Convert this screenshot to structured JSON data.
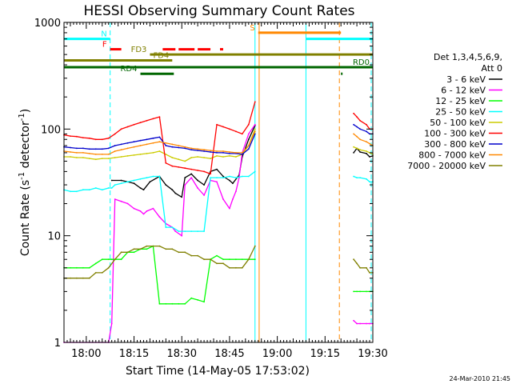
{
  "chart_data": {
    "type": "line",
    "title": "HESSI Observing Summary Count Rates",
    "xlabel": "Start Time (14-May-05 17:53:02)",
    "ylabel_pre": "Count Rate (s",
    "ylabel_sup1": "-1",
    "ylabel_mid": " detector",
    "ylabel_sup2": "-1",
    "ylabel_post": ")",
    "x_unit": "minutes after 17:53:02",
    "xlim": [
      0,
      97
    ],
    "ylim": [
      1,
      1000
    ],
    "y_scale": "log",
    "x_ticks": [
      {
        "x": 7,
        "label": "18:00"
      },
      {
        "x": 22,
        "label": "18:15"
      },
      {
        "x": 37,
        "label": "18:30"
      },
      {
        "x": 52,
        "label": "18:45"
      },
      {
        "x": 67,
        "label": "19:00"
      },
      {
        "x": 82,
        "label": "19:15"
      },
      {
        "x": 97,
        "label": "19:30"
      }
    ],
    "y_ticks": [
      {
        "y": 1,
        "label": "1"
      },
      {
        "y": 10,
        "label": "10"
      },
      {
        "y": 100,
        "label": "100"
      },
      {
        "y": 1000,
        "label": "1000"
      }
    ],
    "legend_title": [
      "Det 1,3,4,5,6,9,",
      "Att 0"
    ],
    "legend_position": "right",
    "series": [
      {
        "name": "3 - 6 keV",
        "color": "#000000",
        "x": [
          0,
          5,
          10,
          14.5,
          15,
          18,
          20,
          22,
          24,
          25,
          27,
          30,
          32,
          34,
          35,
          37,
          38,
          40,
          42,
          44,
          46,
          48,
          50,
          52,
          53,
          55,
          56,
          58,
          60,
          62,
          64,
          68,
          70,
          72,
          74,
          76,
          78,
          80,
          82,
          90,
          91,
          92,
          93,
          95,
          96,
          97
        ],
        "y": [
          null,
          null,
          null,
          null,
          33,
          33,
          32,
          31,
          28,
          27,
          32,
          36,
          30,
          27,
          25,
          23,
          35,
          38,
          33,
          30,
          40,
          42,
          36,
          33,
          31,
          37,
          55,
          80,
          108,
          null,
          null,
          null,
          null,
          null,
          null,
          null,
          null,
          null,
          null,
          null,
          60,
          66,
          61,
          59,
          55,
          56
        ]
      },
      {
        "name": "6 - 12 keV",
        "color": "#ff00ff",
        "x": [
          0,
          14,
          15,
          16,
          18,
          20,
          22,
          24,
          25,
          26,
          28,
          30,
          32,
          34,
          35,
          37,
          38,
          40,
          42,
          44,
          46,
          48,
          50,
          52,
          53,
          54,
          55,
          56,
          58,
          60,
          62,
          64,
          70,
          72,
          74,
          76,
          78,
          80,
          82,
          90,
          91,
          92,
          93,
          95,
          96,
          97
        ],
        "y": [
          1,
          1,
          1.5,
          22,
          21,
          20,
          18,
          17,
          16,
          17,
          18,
          15,
          13,
          12,
          11,
          10,
          30,
          35,
          28,
          24,
          33,
          32,
          22,
          18,
          22,
          26,
          35,
          60,
          90,
          110,
          null,
          null,
          null,
          null,
          null,
          null,
          null,
          null,
          null,
          null,
          1.6,
          1.5,
          1.5,
          1.5,
          1.5,
          1.5
        ]
      },
      {
        "name": "12 - 25 keV",
        "color": "#00ff00",
        "x": [
          0,
          2,
          4,
          6,
          8,
          10,
          12,
          14,
          15,
          18,
          20,
          22,
          24,
          26,
          28,
          30,
          32,
          34,
          36,
          38,
          40,
          42,
          44,
          46,
          48,
          50,
          52,
          54,
          56,
          58,
          60,
          62,
          64,
          70,
          80,
          90,
          91,
          92,
          93,
          95,
          96,
          97
        ],
        "y": [
          5,
          5,
          5,
          5,
          5,
          5.5,
          6,
          6,
          6,
          6,
          7,
          7,
          7.5,
          7.5,
          8,
          2.3,
          2.3,
          2.3,
          2.3,
          2.3,
          2.6,
          2.5,
          2.4,
          6,
          6.5,
          6,
          6,
          6,
          6,
          6,
          6,
          null,
          null,
          null,
          null,
          null,
          3,
          3,
          3,
          3,
          3,
          3
        ]
      },
      {
        "name": "25 - 50 keV",
        "color": "#00ffff",
        "x": [
          0,
          2,
          4,
          6,
          8,
          10,
          12,
          14,
          15,
          16,
          18,
          20,
          22,
          24,
          26,
          28,
          30,
          32,
          34,
          36,
          38,
          40,
          42,
          44,
          46,
          48,
          50,
          52,
          54,
          56,
          58,
          60,
          62,
          64,
          68,
          70,
          72,
          74,
          76,
          78,
          80,
          82,
          84,
          90,
          91,
          92,
          93,
          95,
          96,
          97
        ],
        "y": [
          27,
          26,
          26,
          27,
          27,
          28,
          27,
          28,
          28,
          30,
          31,
          32,
          33,
          34,
          35,
          36,
          36,
          12,
          12,
          11,
          11,
          11,
          11,
          11,
          35,
          35,
          35,
          36,
          35,
          36,
          36,
          40,
          null,
          null,
          null,
          null,
          null,
          null,
          null,
          null,
          null,
          null,
          null,
          null,
          36,
          35,
          35,
          34,
          32,
          32
        ]
      },
      {
        "name": "50 - 100 keV",
        "color": "#cccc00",
        "x": [
          0,
          2,
          4,
          6,
          8,
          10,
          12,
          14,
          16,
          18,
          20,
          22,
          24,
          26,
          28,
          30,
          32,
          34,
          36,
          38,
          40,
          42,
          44,
          46,
          48,
          50,
          52,
          54,
          56,
          58,
          60,
          62,
          90,
          91,
          92,
          93,
          95,
          96,
          97
        ],
        "y": [
          55,
          55,
          54,
          54,
          53,
          52,
          53,
          53,
          54,
          55,
          56,
          57,
          58,
          59,
          60,
          62,
          58,
          54,
          52,
          50,
          54,
          55,
          54,
          53,
          56,
          55,
          56,
          55,
          58,
          70,
          100,
          null,
          null,
          68,
          66,
          64,
          62,
          60,
          58
        ]
      },
      {
        "name": "100 - 300 keV",
        "color": "#ff0000",
        "x": [
          0,
          2,
          4,
          6,
          8,
          10,
          12,
          14,
          16,
          18,
          20,
          22,
          24,
          26,
          28,
          30,
          32,
          34,
          36,
          38,
          40,
          42,
          44,
          46,
          48,
          50,
          52,
          54,
          56,
          58,
          60,
          62,
          90,
          91,
          92,
          93,
          95,
          96,
          97
        ],
        "y": [
          88,
          86,
          85,
          83,
          82,
          80,
          80,
          82,
          90,
          100,
          105,
          110,
          115,
          120,
          125,
          130,
          48,
          45,
          44,
          43,
          42,
          41,
          40,
          38,
          110,
          105,
          100,
          95,
          90,
          110,
          180,
          null,
          null,
          140,
          130,
          120,
          110,
          100,
          100
        ]
      },
      {
        "name": "300 - 800 keV",
        "color": "#0000cc",
        "x": [
          0,
          2,
          4,
          6,
          8,
          10,
          12,
          14,
          16,
          18,
          20,
          22,
          24,
          26,
          28,
          30,
          32,
          34,
          36,
          38,
          40,
          42,
          44,
          46,
          48,
          50,
          52,
          54,
          56,
          58,
          60,
          62,
          90,
          91,
          92,
          93,
          95,
          96,
          97
        ],
        "y": [
          68,
          67,
          66,
          66,
          65,
          65,
          65,
          66,
          70,
          72,
          74,
          76,
          78,
          80,
          82,
          84,
          70,
          68,
          67,
          66,
          64,
          63,
          62,
          61,
          60,
          60,
          59,
          59,
          58,
          65,
          90,
          null,
          null,
          110,
          105,
          100,
          95,
          90,
          90
        ]
      },
      {
        "name": "800 - 7000 keV",
        "color": "#ff8800",
        "x": [
          0,
          2,
          4,
          6,
          8,
          10,
          12,
          14,
          16,
          18,
          20,
          22,
          24,
          26,
          28,
          30,
          32,
          34,
          36,
          38,
          40,
          42,
          44,
          46,
          48,
          50,
          52,
          54,
          56,
          58,
          60,
          62,
          90,
          91,
          92,
          93,
          95,
          96,
          97
        ],
        "y": [
          62,
          61,
          60,
          60,
          59,
          58,
          58,
          58,
          62,
          64,
          66,
          68,
          70,
          72,
          74,
          76,
          74,
          72,
          70,
          68,
          66,
          65,
          64,
          63,
          62,
          62,
          61,
          60,
          60,
          70,
          95,
          null,
          null,
          90,
          85,
          80,
          76,
          73,
          70
        ]
      },
      {
        "name": "7000 - 20000 keV",
        "color": "#808000",
        "x": [
          0,
          2,
          4,
          6,
          8,
          10,
          12,
          14,
          16,
          18,
          20,
          22,
          24,
          26,
          28,
          30,
          32,
          34,
          36,
          38,
          40,
          42,
          44,
          46,
          48,
          50,
          52,
          54,
          56,
          58,
          60,
          62,
          90,
          91,
          92,
          93,
          95,
          96,
          97
        ],
        "y": [
          4,
          4,
          4,
          4,
          4,
          4.5,
          4.5,
          5,
          6,
          7,
          7,
          7.5,
          7.5,
          8,
          8,
          8,
          7.5,
          7.5,
          7,
          7,
          6.5,
          6.5,
          6,
          6,
          5.5,
          5.5,
          5,
          5,
          5,
          6,
          8,
          null,
          null,
          6,
          5.5,
          5,
          5,
          4.5,
          4.5
        ]
      }
    ],
    "annotations": {
      "flags": [
        {
          "label": "N",
          "color": "#00ffff",
          "segments": [
            [
              0,
              14.5
            ],
            [
              76,
              97
            ]
          ],
          "y_value": 700
        },
        {
          "label": "S",
          "color": "#ff8800",
          "segments": [
            [
              61,
              87
            ]
          ],
          "y_value": 800
        },
        {
          "label": "F",
          "color": "#ff0000",
          "segments": [
            [
              14.5,
              18
            ],
            [
              31,
              35
            ],
            [
              36,
              41
            ],
            [
              42,
              46
            ],
            [
              49,
              50
            ]
          ],
          "y_value": 560
        },
        {
          "label": "FD3",
          "color": "#808000",
          "segments": [
            [
              27,
              97
            ]
          ],
          "y_value": 500
        },
        {
          "label": "FD4",
          "color": "#808000",
          "segments": [
            [
              0,
              34
            ]
          ],
          "y_value": 440
        },
        {
          "label": "RD0",
          "color": "#006600",
          "segments": [
            [
              0,
              97
            ]
          ],
          "y_value": 380
        },
        {
          "label": "RD4",
          "color": "#006600",
          "segments": [
            [
              24,
              34.5
            ],
            [
              87,
              87.5
            ]
          ],
          "y_value": 330
        }
      ],
      "vlines": [
        {
          "x": 0,
          "color": "#00ffff",
          "style": "solid"
        },
        {
          "x": 14.5,
          "color": "#00ffff",
          "style": "dashed"
        },
        {
          "x": 60,
          "color": "#00ffff",
          "style": "solid"
        },
        {
          "x": 61.3,
          "color": "#ff8800",
          "style": "solid"
        },
        {
          "x": 76,
          "color": "#00ffff",
          "style": "solid"
        },
        {
          "x": 86.5,
          "color": "#ff8800",
          "style": "dashed"
        },
        {
          "x": 96.5,
          "color": "#00ffff",
          "style": "dashed"
        }
      ]
    },
    "footer_timestamp": "24-Mar-2010 21:45"
  }
}
